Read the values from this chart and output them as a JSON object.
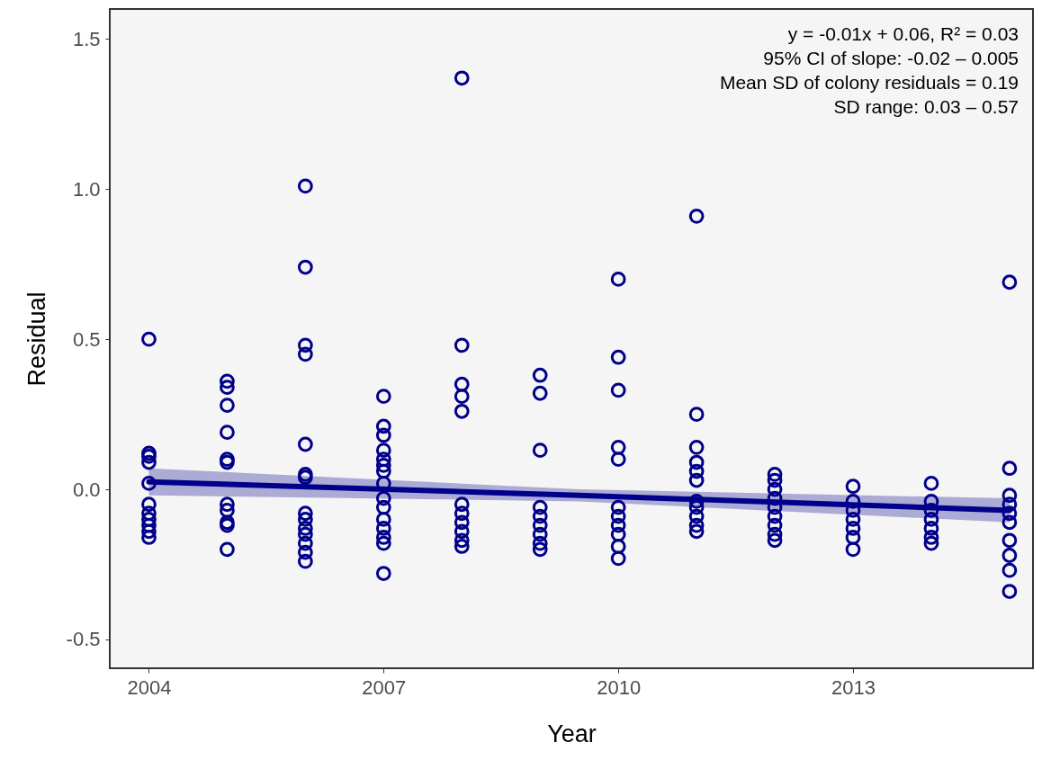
{
  "chart_data": {
    "type": "scatter",
    "xlabel": "Year",
    "ylabel": "Residual",
    "annotations": [
      "y = -0.01x + 0.06, R² = 0.03",
      "95% CI of slope: -0.02 – 0.005",
      "Mean SD of colony residuals = 0.19",
      "SD range: 0.03 – 0.57"
    ],
    "xlim": [
      2003.5,
      2015.3
    ],
    "xticks": [
      2004,
      2007,
      2010,
      2013
    ],
    "ylim": [
      -0.596,
      1.6
    ],
    "yticks": [
      {
        "value": -0.5,
        "label": "-0.5"
      },
      {
        "value": 0,
        "label": "0.0"
      },
      {
        "value": 0.5,
        "label": "0.5"
      },
      {
        "value": 1,
        "label": "1.0"
      },
      {
        "value": 1.5,
        "label": "1.5"
      }
    ],
    "grid": false,
    "series": [
      {
        "type": "scatter",
        "marker": "circle",
        "color": "#00008b",
        "x": [
          2004,
          2004,
          2004,
          2004,
          2004,
          2004,
          2004,
          2004,
          2004,
          2004,
          2004,
          2005,
          2005,
          2005,
          2005,
          2005,
          2005,
          2005,
          2005,
          2005,
          2005,
          2005,
          2006,
          2006,
          2006,
          2006,
          2006,
          2006,
          2006,
          2006,
          2006,
          2006,
          2006,
          2006,
          2006,
          2006,
          2007,
          2007,
          2007,
          2007,
          2007,
          2007,
          2007,
          2007,
          2007,
          2007,
          2007,
          2007,
          2007,
          2007,
          2007,
          2008,
          2008,
          2008,
          2008,
          2008,
          2008,
          2008,
          2008,
          2008,
          2008,
          2008,
          2009,
          2009,
          2009,
          2009,
          2009,
          2009,
          2009,
          2009,
          2009,
          2010,
          2010,
          2010,
          2010,
          2010,
          2010,
          2010,
          2010,
          2010,
          2010,
          2010,
          2011,
          2011,
          2011,
          2011,
          2011,
          2011,
          2011,
          2011,
          2011,
          2011,
          2011,
          2012,
          2012,
          2012,
          2012,
          2012,
          2012,
          2012,
          2012,
          2012,
          2013,
          2013,
          2013,
          2013,
          2013,
          2013,
          2013,
          2014,
          2014,
          2014,
          2014,
          2014,
          2014,
          2014,
          2015,
          2015,
          2015,
          2015,
          2015,
          2015,
          2015,
          2015,
          2015,
          2015
        ],
        "values": [
          0.5,
          0.12,
          0.11,
          0.09,
          0.02,
          -0.05,
          -0.08,
          -0.1,
          -0.12,
          -0.14,
          -0.16,
          0.36,
          0.34,
          0.28,
          0.19,
          0.1,
          0.09,
          -0.05,
          -0.07,
          -0.11,
          -0.12,
          -0.2,
          1.01,
          0.74,
          0.48,
          0.45,
          0.15,
          0.05,
          0.04,
          -0.08,
          -0.1,
          -0.13,
          -0.15,
          -0.18,
          -0.21,
          -0.24,
          0.31,
          0.21,
          0.18,
          0.13,
          0.1,
          0.08,
          0.06,
          0.02,
          -0.03,
          -0.06,
          -0.1,
          -0.13,
          -0.16,
          -0.18,
          -0.28,
          1.37,
          0.48,
          0.35,
          0.31,
          0.26,
          -0.05,
          -0.08,
          -0.11,
          -0.14,
          -0.17,
          -0.19,
          0.38,
          0.32,
          0.13,
          -0.06,
          -0.09,
          -0.12,
          -0.15,
          -0.18,
          -0.2,
          0.7,
          0.44,
          0.33,
          0.14,
          0.1,
          -0.06,
          -0.09,
          -0.12,
          -0.15,
          -0.19,
          -0.23,
          0.91,
          0.25,
          0.14,
          0.09,
          0.06,
          0.03,
          -0.04,
          -0.06,
          -0.09,
          -0.12,
          -0.14,
          0.05,
          0.03,
          0.0,
          -0.03,
          -0.06,
          -0.09,
          -0.12,
          -0.15,
          -0.17,
          0.01,
          -0.04,
          -0.07,
          -0.1,
          -0.13,
          -0.16,
          -0.2,
          0.02,
          -0.04,
          -0.07,
          -0.1,
          -0.13,
          -0.16,
          -0.18,
          0.69,
          0.07,
          -0.02,
          -0.05,
          -0.08,
          -0.11,
          -0.17,
          -0.22,
          -0.27,
          -0.34
        ]
      },
      {
        "type": "line",
        "marker": "none",
        "line_style": "solid",
        "color": "#00008b",
        "x": [
          2004,
          2009.5,
          2015
        ],
        "values": [
          0.025,
          -0.02,
          -0.07
        ],
        "lower": [
          -0.02,
          -0.04,
          -0.11
        ],
        "upper": [
          0.07,
          0.0,
          -0.03
        ]
      }
    ]
  }
}
